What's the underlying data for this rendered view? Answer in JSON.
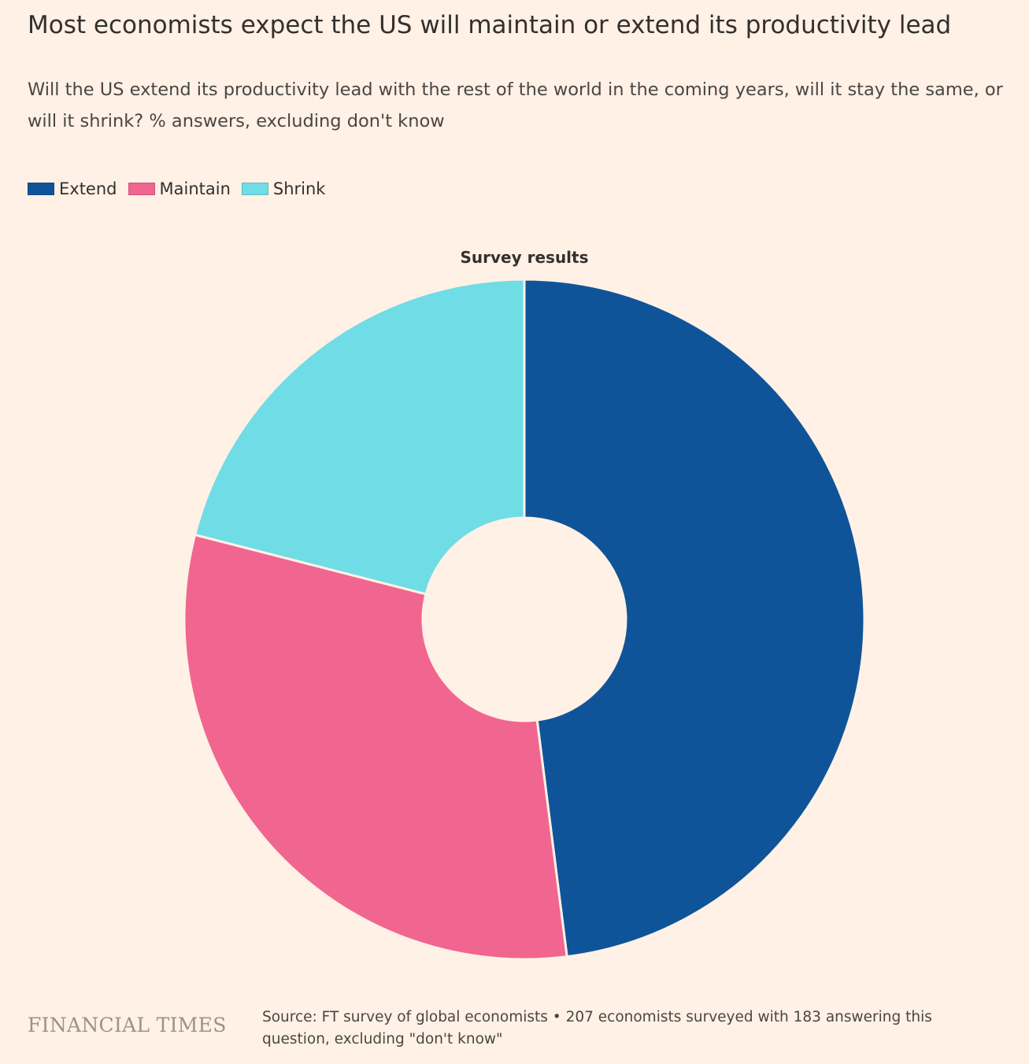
{
  "header": {
    "title": "Most economists expect the US will maintain or extend its productivity lead",
    "subtitle": "Will the US extend its productivity lead with the rest of the world in the coming years, will it stay the same, or will it shrink? % answers, excluding don't know"
  },
  "legend": {
    "items": [
      {
        "label": "Extend",
        "color": "#0F5499"
      },
      {
        "label": "Maintain",
        "color": "#F06690"
      },
      {
        "label": "Shrink",
        "color": "#70DCE5"
      }
    ]
  },
  "chart_data": {
    "type": "pie",
    "variant": "donut",
    "title": "Survey results",
    "categories": [
      "Extend",
      "Maintain",
      "Shrink"
    ],
    "values": [
      48,
      31,
      21
    ],
    "unit": "%",
    "colors": [
      "#0F5499",
      "#F06690",
      "#70DCE5"
    ],
    "legend_position": "top-left"
  },
  "footer": {
    "brand": "FINANCIAL TIMES",
    "source": "Source: FT survey of global economists • 207 economists surveyed with 183 answering this question, excluding \"don't know\""
  }
}
